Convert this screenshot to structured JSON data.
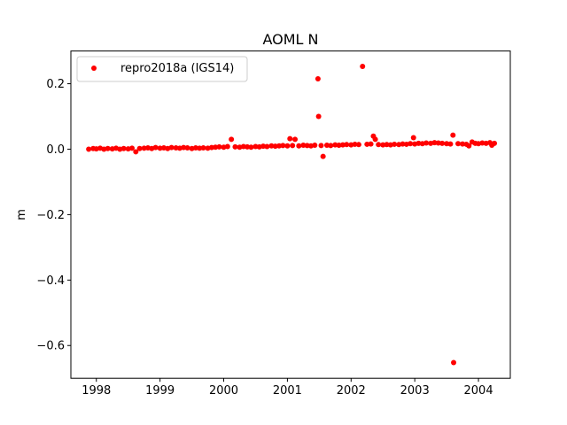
{
  "chart_data": {
    "type": "scatter",
    "title": "AOML N",
    "xlabel": "",
    "ylabel": "m",
    "xlim": [
      1997.6,
      2004.5
    ],
    "ylim": [
      -0.7,
      0.3
    ],
    "xticks": [
      {
        "value": 1998,
        "label": "1998"
      },
      {
        "value": 1999,
        "label": "1999"
      },
      {
        "value": 2000,
        "label": "2000"
      },
      {
        "value": 2001,
        "label": "2001"
      },
      {
        "value": 2002,
        "label": "2002"
      },
      {
        "value": 2003,
        "label": "2003"
      },
      {
        "value": 2004,
        "label": "2004"
      }
    ],
    "yticks": [
      {
        "value": 0.2,
        "label": "0.2"
      },
      {
        "value": 0.0,
        "label": "0.0"
      },
      {
        "value": -0.2,
        "label": "−0.2"
      },
      {
        "value": -0.4,
        "label": "−0.4"
      },
      {
        "value": -0.6,
        "label": "−0.6"
      }
    ],
    "grid": false,
    "legend_position": "top-left",
    "series": [
      {
        "name": "repro2018a (IGS14)",
        "color": "#ff0000",
        "marker": "circle",
        "points": [
          [
            1997.88,
            0.0
          ],
          [
            1997.95,
            0.002
          ],
          [
            1998.0,
            0.001
          ],
          [
            1998.06,
            0.003
          ],
          [
            1998.12,
            0.0
          ],
          [
            1998.18,
            0.002
          ],
          [
            1998.25,
            0.001
          ],
          [
            1998.31,
            0.003
          ],
          [
            1998.37,
            0.0
          ],
          [
            1998.43,
            0.002
          ],
          [
            1998.5,
            0.001
          ],
          [
            1998.56,
            0.003
          ],
          [
            1998.62,
            -0.008
          ],
          [
            1998.68,
            0.002
          ],
          [
            1998.75,
            0.003
          ],
          [
            1998.81,
            0.004
          ],
          [
            1998.87,
            0.002
          ],
          [
            1998.93,
            0.005
          ],
          [
            1999.0,
            0.003
          ],
          [
            1999.06,
            0.004
          ],
          [
            1999.12,
            0.002
          ],
          [
            1999.18,
            0.005
          ],
          [
            1999.25,
            0.004
          ],
          [
            1999.31,
            0.003
          ],
          [
            1999.37,
            0.005
          ],
          [
            1999.43,
            0.004
          ],
          [
            1999.5,
            0.002
          ],
          [
            1999.56,
            0.004
          ],
          [
            1999.62,
            0.003
          ],
          [
            1999.68,
            0.004
          ],
          [
            1999.75,
            0.003
          ],
          [
            1999.81,
            0.005
          ],
          [
            1999.87,
            0.006
          ],
          [
            1999.93,
            0.007
          ],
          [
            2000.0,
            0.006
          ],
          [
            2000.06,
            0.008
          ],
          [
            2000.12,
            0.03
          ],
          [
            2000.18,
            0.007
          ],
          [
            2000.25,
            0.006
          ],
          [
            2000.31,
            0.008
          ],
          [
            2000.37,
            0.007
          ],
          [
            2000.43,
            0.006
          ],
          [
            2000.5,
            0.008
          ],
          [
            2000.56,
            0.007
          ],
          [
            2000.62,
            0.009
          ],
          [
            2000.68,
            0.008
          ],
          [
            2000.75,
            0.01
          ],
          [
            2000.81,
            0.009
          ],
          [
            2000.87,
            0.01
          ],
          [
            2000.93,
            0.011
          ],
          [
            2001.0,
            0.01
          ],
          [
            2001.04,
            0.032
          ],
          [
            2001.08,
            0.011
          ],
          [
            2001.12,
            0.03
          ],
          [
            2001.18,
            0.01
          ],
          [
            2001.25,
            0.012
          ],
          [
            2001.31,
            0.011
          ],
          [
            2001.37,
            0.01
          ],
          [
            2001.43,
            0.012
          ],
          [
            2001.48,
            0.215
          ],
          [
            2001.49,
            0.1
          ],
          [
            2001.53,
            0.011
          ],
          [
            2001.56,
            -0.022
          ],
          [
            2001.62,
            0.012
          ],
          [
            2001.68,
            0.011
          ],
          [
            2001.75,
            0.013
          ],
          [
            2001.81,
            0.012
          ],
          [
            2001.87,
            0.013
          ],
          [
            2001.93,
            0.014
          ],
          [
            2002.0,
            0.013
          ],
          [
            2002.06,
            0.015
          ],
          [
            2002.12,
            0.014
          ],
          [
            2002.18,
            0.253
          ],
          [
            2002.25,
            0.015
          ],
          [
            2002.31,
            0.016
          ],
          [
            2002.35,
            0.04
          ],
          [
            2002.38,
            0.03
          ],
          [
            2002.43,
            0.014
          ],
          [
            2002.5,
            0.013
          ],
          [
            2002.56,
            0.014
          ],
          [
            2002.62,
            0.013
          ],
          [
            2002.68,
            0.015
          ],
          [
            2002.75,
            0.014
          ],
          [
            2002.81,
            0.016
          ],
          [
            2002.87,
            0.015
          ],
          [
            2002.93,
            0.017
          ],
          [
            2002.98,
            0.035
          ],
          [
            2003.0,
            0.016
          ],
          [
            2003.06,
            0.018
          ],
          [
            2003.12,
            0.017
          ],
          [
            2003.18,
            0.019
          ],
          [
            2003.25,
            0.018
          ],
          [
            2003.31,
            0.02
          ],
          [
            2003.37,
            0.019
          ],
          [
            2003.43,
            0.018
          ],
          [
            2003.5,
            0.017
          ],
          [
            2003.56,
            0.016
          ],
          [
            2003.6,
            0.043
          ],
          [
            2003.61,
            -0.652
          ],
          [
            2003.68,
            0.017
          ],
          [
            2003.75,
            0.016
          ],
          [
            2003.81,
            0.015
          ],
          [
            2003.85,
            0.01
          ],
          [
            2003.9,
            0.022
          ],
          [
            2003.95,
            0.018
          ],
          [
            2004.0,
            0.017
          ],
          [
            2004.06,
            0.019
          ],
          [
            2004.12,
            0.018
          ],
          [
            2004.18,
            0.02
          ],
          [
            2004.21,
            0.012
          ],
          [
            2004.25,
            0.018
          ]
        ]
      }
    ]
  }
}
